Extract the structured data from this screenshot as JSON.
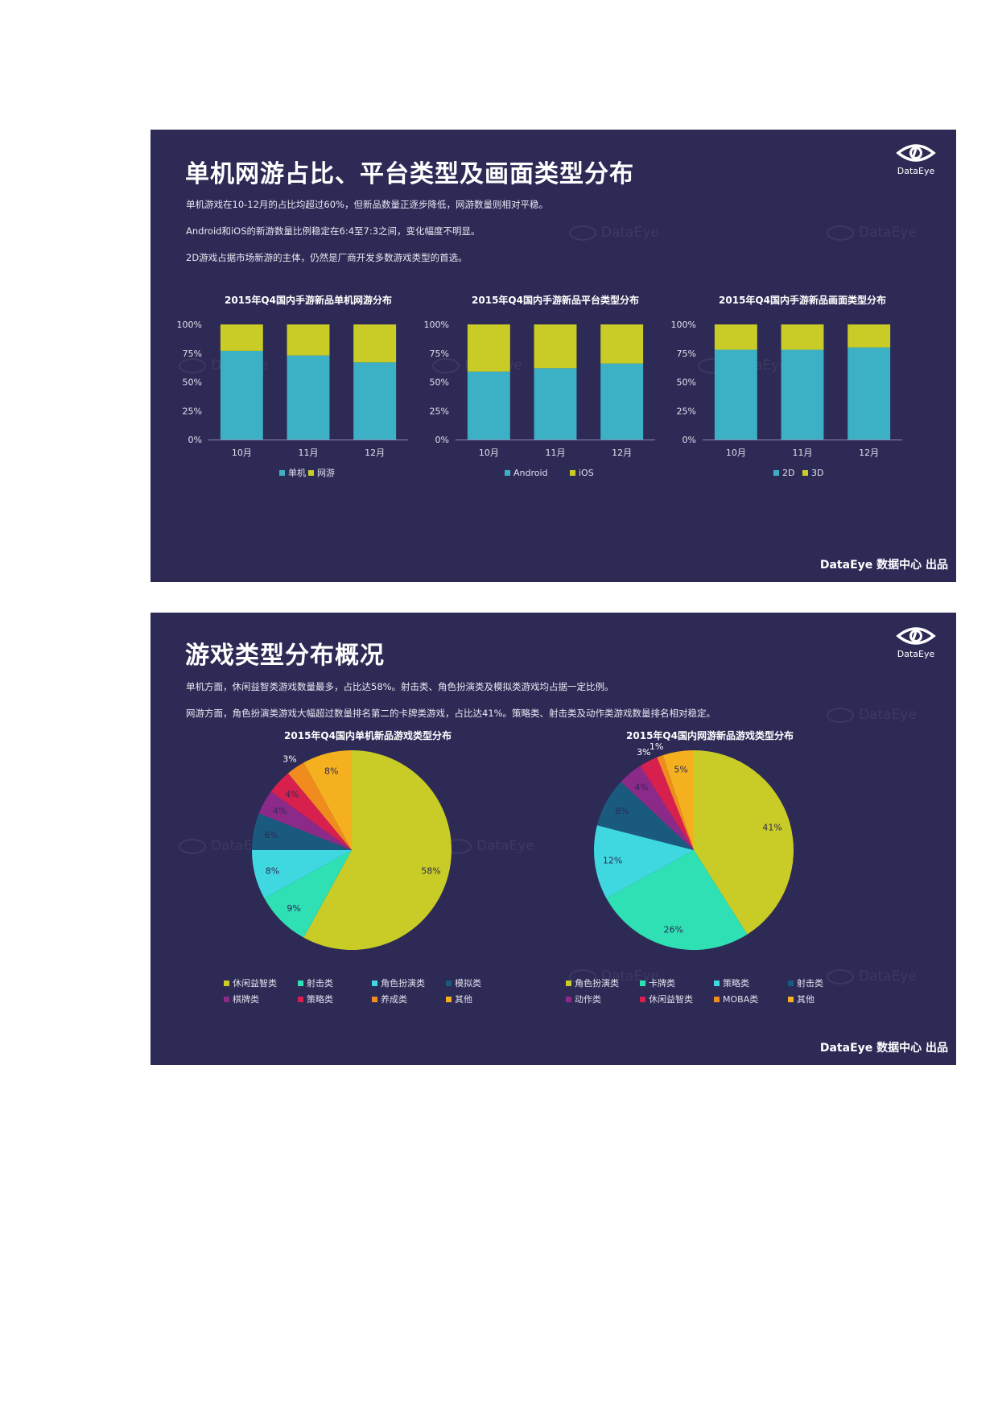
{
  "brand": {
    "logo_text": "DataEye",
    "footer": "DataEye 数据中心 出品",
    "watermark": "DataEye"
  },
  "slide1": {
    "title": "单机网游占比、平台类型及画面类型分布",
    "bullets": [
      "单机游戏在10-12月的占比均超过60%，但新品数量正逐步降低，网游数量则相对平稳。",
      "Android和iOS的新游数量比例稳定在6:4至7:3之间，变化幅度不明显。",
      "2D游戏占据市场新游的主体，仍然是厂商开发多数游戏类型的首选。"
    ]
  },
  "slide2": {
    "title": "游戏类型分布概况",
    "bullets": [
      "单机方面，休闲益智类游戏数量最多，占比达58%。射击类、角色扮演类及模拟类游戏均占据一定比例。",
      "网游方面，角色扮演类游戏大幅超过数量排名第二的卡牌类游戏，占比达41%。策略类、射击类及动作类游戏数量排名相对稳定。"
    ]
  },
  "chart_data": [
    {
      "type": "bar",
      "stacked": true,
      "title": "2015年Q4国内手游新品单机网游分布",
      "categories": [
        "10月",
        "11月",
        "12月"
      ],
      "series": [
        {
          "name": "单机",
          "values": [
            77,
            73,
            67
          ],
          "color": "#3cb0c4"
        },
        {
          "name": "网游",
          "values": [
            23,
            27,
            33
          ],
          "color": "#c9cc26"
        }
      ],
      "ylim": [
        0,
        100
      ],
      "yticks": [
        "0%",
        "25%",
        "50%",
        "75%",
        "100%"
      ],
      "legend": "bottom"
    },
    {
      "type": "bar",
      "stacked": true,
      "title": "2015年Q4国内手游新品平台类型分布",
      "categories": [
        "10月",
        "11月",
        "12月"
      ],
      "series": [
        {
          "name": "Android",
          "values": [
            59,
            62,
            66
          ],
          "color": "#3cb0c4"
        },
        {
          "name": "iOS",
          "values": [
            41,
            38,
            34
          ],
          "color": "#c9cc26"
        }
      ],
      "ylim": [
        0,
        100
      ],
      "yticks": [
        "0%",
        "25%",
        "50%",
        "75%",
        "100%"
      ],
      "legend": "bottom"
    },
    {
      "type": "bar",
      "stacked": true,
      "title": "2015年Q4国内手游新品画面类型分布",
      "categories": [
        "10月",
        "11月",
        "12月"
      ],
      "series": [
        {
          "name": "2D",
          "values": [
            78,
            78,
            80
          ],
          "color": "#3cb0c4"
        },
        {
          "name": "3D",
          "values": [
            22,
            22,
            20
          ],
          "color": "#c9cc26"
        }
      ],
      "ylim": [
        0,
        100
      ],
      "yticks": [
        "0%",
        "25%",
        "50%",
        "75%",
        "100%"
      ],
      "legend": "bottom"
    },
    {
      "type": "pie",
      "title": "2015年Q4国内单机新品游戏类型分布",
      "slices": [
        {
          "name": "休闲益智类",
          "value": 58,
          "label": "58%",
          "color": "#c9cc26"
        },
        {
          "name": "射击类",
          "value": 9,
          "label": "9%",
          "color": "#2fe0b4"
        },
        {
          "name": "角色扮演类",
          "value": 8,
          "label": "8%",
          "color": "#40d8e0"
        },
        {
          "name": "模拟类",
          "value": 6,
          "label": "6%",
          "color": "#1a5a7e"
        },
        {
          "name": "棋牌类",
          "value": 4,
          "label": "4%",
          "color": "#8c2a8a"
        },
        {
          "name": "策略类",
          "value": 4,
          "label": "4%",
          "color": "#d8204e"
        },
        {
          "name": "养成类",
          "value": 3,
          "label": "3%",
          "color": "#f08c1e"
        },
        {
          "name": "其他",
          "value": 8,
          "label": "8%",
          "color": "#f4b01e"
        }
      ],
      "legend": "bottom"
    },
    {
      "type": "pie",
      "title": "2015年Q4国内网游新品游戏类型分布",
      "slices": [
        {
          "name": "角色扮演类",
          "value": 41,
          "label": "41%",
          "color": "#c9cc26"
        },
        {
          "name": "卡牌类",
          "value": 26,
          "label": "26%",
          "color": "#2fe0b4"
        },
        {
          "name": "策略类",
          "value": 12,
          "label": "12%",
          "color": "#40d8e0"
        },
        {
          "name": "射击类",
          "value": 8,
          "label": "8%",
          "color": "#1a5a7e"
        },
        {
          "name": "动作类",
          "value": 4,
          "label": "4%",
          "color": "#8c2a8a"
        },
        {
          "name": "休闲益智类",
          "value": 3,
          "label": "3%",
          "color": "#d8204e"
        },
        {
          "name": "MOBA类",
          "value": 1,
          "label": "1%",
          "color": "#f08c1e"
        },
        {
          "name": "其他",
          "value": 5,
          "label": "5%",
          "color": "#f4b01e"
        }
      ],
      "legend": "bottom"
    }
  ]
}
